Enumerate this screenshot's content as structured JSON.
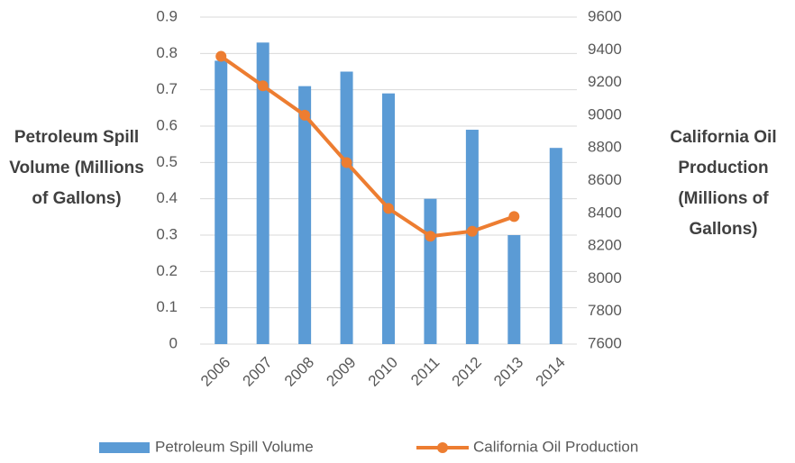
{
  "chart_data": {
    "type": "bar",
    "y_label": "Petroleum Spill Volume (Millions of Gallons)",
    "y2_label": "California Oil Production (Millions of Gallons)",
    "categories": [
      "2006",
      "2007",
      "2008",
      "2009",
      "2010",
      "2011",
      "2012",
      "2013",
      "2014"
    ],
    "series": [
      {
        "name": "Petroleum Spill Volume",
        "type": "bar",
        "color": "#5b9bd5",
        "values": [
          0.78,
          0.83,
          0.71,
          0.75,
          0.69,
          0.4,
          0.59,
          0.3,
          0.54
        ]
      },
      {
        "name": "California Oil Production",
        "type": "line",
        "axis": "y2",
        "color": "#ed7d31",
        "values": [
          9360,
          9180,
          9000,
          8710,
          8430,
          8260,
          8290,
          8380,
          null
        ]
      }
    ],
    "ylim": [
      0,
      0.9
    ],
    "yticks": [
      0,
      0.1,
      0.2,
      0.3,
      0.4,
      0.5,
      0.6,
      0.7,
      0.8,
      0.9
    ],
    "y2lim": [
      7600,
      9600
    ],
    "y2ticks": [
      7600,
      7800,
      8000,
      8200,
      8400,
      8600,
      8800,
      9000,
      9200,
      9400,
      9600
    ],
    "grid": true,
    "legend": "bottom"
  }
}
